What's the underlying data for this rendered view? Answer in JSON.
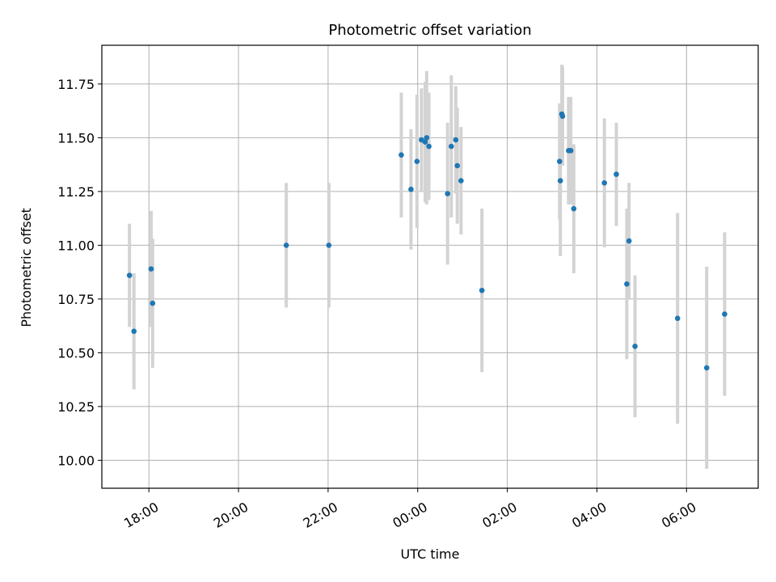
{
  "chart_data": {
    "type": "scatter",
    "title": "Photometric offset variation",
    "xlabel": "UTC time",
    "ylabel": "Photometric offset",
    "grid": true,
    "x_range_hours": [
      16.95,
      31.6
    ],
    "ylim": [
      9.87,
      11.93
    ],
    "x_ticks": [
      {
        "hour": 18,
        "label": "18:00"
      },
      {
        "hour": 20,
        "label": "20:00"
      },
      {
        "hour": 22,
        "label": "22:00"
      },
      {
        "hour": 24,
        "label": "00:00"
      },
      {
        "hour": 26,
        "label": "02:00"
      },
      {
        "hour": 28,
        "label": "04:00"
      },
      {
        "hour": 30,
        "label": "06:00"
      }
    ],
    "y_ticks": [
      {
        "value": 10.0,
        "label": "10.00"
      },
      {
        "value": 10.25,
        "label": "10.25"
      },
      {
        "value": 10.5,
        "label": "10.50"
      },
      {
        "value": 10.75,
        "label": "10.75"
      },
      {
        "value": 11.0,
        "label": "11.00"
      },
      {
        "value": 11.25,
        "label": "11.25"
      },
      {
        "value": 11.5,
        "label": "11.50"
      },
      {
        "value": 11.75,
        "label": "11.75"
      }
    ],
    "colors": {
      "marker": "#1f77b4",
      "errorbar": "#d3d3d3"
    },
    "points": [
      {
        "time": "17:34",
        "y": 10.86,
        "err": 0.24
      },
      {
        "time": "17:40",
        "y": 10.6,
        "err": 0.27
      },
      {
        "time": "18:03",
        "y": 10.89,
        "err": 0.27
      },
      {
        "time": "18:05",
        "y": 10.73,
        "err": 0.3
      },
      {
        "time": "21:04",
        "y": 11.0,
        "err": 0.29
      },
      {
        "time": "22:01",
        "y": 11.0,
        "err": 0.29
      },
      {
        "time": "23:38",
        "y": 11.42,
        "err": 0.29
      },
      {
        "time": "23:51",
        "y": 11.26,
        "err": 0.28
      },
      {
        "time": "23:59",
        "y": 11.39,
        "err": 0.31
      },
      {
        "time": "00:05",
        "y": 11.49,
        "err": 0.24
      },
      {
        "time": "00:10",
        "y": 11.48,
        "err": 0.28
      },
      {
        "time": "00:12",
        "y": 11.5,
        "err": 0.31
      },
      {
        "time": "00:15",
        "y": 11.46,
        "err": 0.25
      },
      {
        "time": "00:40",
        "y": 11.24,
        "err": 0.33
      },
      {
        "time": "00:45",
        "y": 11.46,
        "err": 0.33
      },
      {
        "time": "00:51",
        "y": 11.49,
        "err": 0.25
      },
      {
        "time": "00:53",
        "y": 11.37,
        "err": 0.27
      },
      {
        "time": "00:58",
        "y": 11.3,
        "err": 0.25
      },
      {
        "time": "01:26",
        "y": 10.79,
        "err": 0.38
      },
      {
        "time": "03:10",
        "y": 11.39,
        "err": 0.27
      },
      {
        "time": "03:11",
        "y": 11.3,
        "err": 0.35
      },
      {
        "time": "03:13",
        "y": 11.61,
        "err": 0.23
      },
      {
        "time": "03:14",
        "y": 11.6,
        "err": 0.23
      },
      {
        "time": "03:22",
        "y": 11.44,
        "err": 0.25
      },
      {
        "time": "03:25",
        "y": 11.44,
        "err": 0.25
      },
      {
        "time": "03:29",
        "y": 11.17,
        "err": 0.3
      },
      {
        "time": "04:10",
        "y": 11.29,
        "err": 0.3
      },
      {
        "time": "04:26",
        "y": 11.33,
        "err": 0.24
      },
      {
        "time": "04:40",
        "y": 10.82,
        "err": 0.35
      },
      {
        "time": "04:43",
        "y": 11.02,
        "err": 0.27
      },
      {
        "time": "04:51",
        "y": 10.53,
        "err": 0.33
      },
      {
        "time": "05:48",
        "y": 10.66,
        "err": 0.49
      },
      {
        "time": "06:27",
        "y": 10.43,
        "err": 0.47
      },
      {
        "time": "06:51",
        "y": 10.68,
        "err": 0.38
      }
    ]
  }
}
